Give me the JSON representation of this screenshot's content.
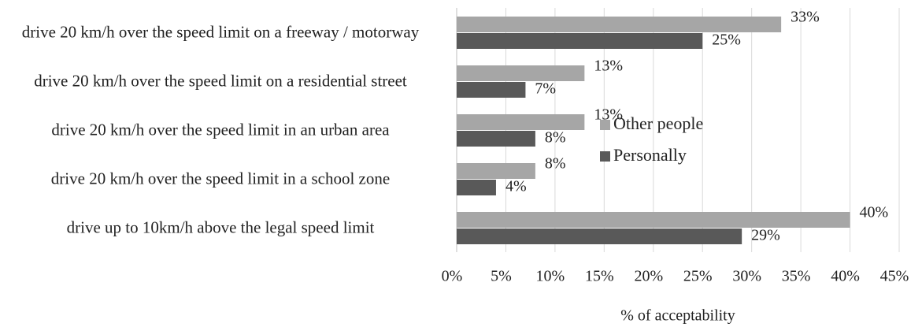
{
  "chart_data": {
    "type": "barh",
    "categories": [
      "drive 20 km/h over the speed limit on a freeway / motorway",
      "drive 20 km/h over the speed limit on a residential street",
      "drive 20 km/h over the speed limit in an urban area",
      "drive 20 km/h over the speed limit in a school zone",
      "drive up to 10km/h above the legal speed limit"
    ],
    "series": [
      {
        "name": "Other people",
        "color": "#a6a6a6",
        "values": [
          33,
          13,
          13,
          8,
          40
        ],
        "value_labels": [
          "33%",
          "13%",
          "13%",
          "8%",
          "40%"
        ]
      },
      {
        "name": "Personally",
        "color": "#595959",
        "values": [
          25,
          7,
          8,
          4,
          29
        ],
        "value_labels": [
          "25%",
          "7%",
          "8%",
          "4%",
          "29%"
        ]
      }
    ],
    "xlabel": "% of acceptability",
    "xlim": [
      0,
      45
    ],
    "xticks": [
      {
        "value": 0,
        "label": "0%"
      },
      {
        "value": 5,
        "label": "5%"
      },
      {
        "value": 10,
        "label": "10%"
      },
      {
        "value": 15,
        "label": "15%"
      },
      {
        "value": 20,
        "label": "20%"
      },
      {
        "value": 25,
        "label": "25%"
      },
      {
        "value": 30,
        "label": "30%"
      },
      {
        "value": 35,
        "label": "35%"
      },
      {
        "value": 40,
        "label": "40%"
      },
      {
        "value": 45,
        "label": "45%"
      }
    ],
    "grid": true,
    "legend": "right"
  }
}
